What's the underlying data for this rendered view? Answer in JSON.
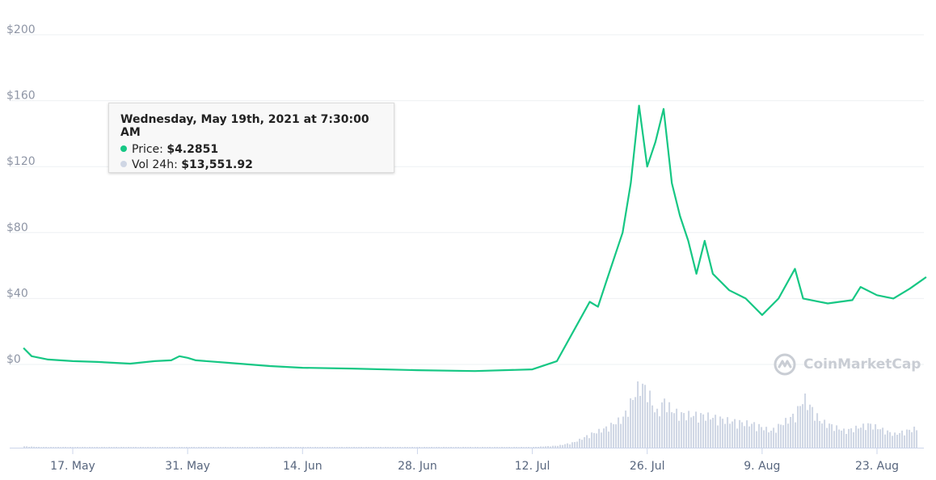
{
  "chart_data": {
    "type": "line",
    "x_ticks": [
      "17. May",
      "31. May",
      "14. Jun",
      "28. Jun",
      "12. Jul",
      "26. Jul",
      "9. Aug",
      "23. Aug"
    ],
    "y_ticks": [
      "$200",
      "$160",
      "$120",
      "$80",
      "$40",
      "$0"
    ],
    "ylim": [
      0,
      200
    ],
    "grid": true,
    "series": [
      {
        "color": "#16c784",
        "points": [
          [
            "May 11",
            10
          ],
          [
            "May 12",
            5
          ],
          [
            "May 14",
            3
          ],
          [
            "May 17",
            2
          ],
          [
            "May 20",
            1.5
          ],
          [
            "May 24",
            0.5
          ],
          [
            "May 27",
            2
          ],
          [
            "May 29",
            2.5
          ],
          [
            "May 30",
            5
          ],
          [
            "May 31",
            4
          ],
          [
            "Jun 1",
            2.5
          ],
          [
            "Jun 5",
            1
          ],
          [
            "Jun 10",
            -1
          ],
          [
            "Jun 14",
            -2
          ],
          [
            "Jun 20",
            -2.5
          ],
          [
            "Jun 28",
            -3.5
          ],
          [
            "Jul 5",
            -4
          ],
          [
            "Jul 12",
            -3
          ],
          [
            "Jul 15",
            2
          ],
          [
            "Jul 17",
            20
          ],
          [
            "Jul 19",
            38
          ],
          [
            "Jul 20",
            35
          ],
          [
            "Jul 21",
            50
          ],
          [
            "Jul 22",
            65
          ],
          [
            "Jul 23",
            80
          ],
          [
            "Jul 24",
            110
          ],
          [
            "Jul 25",
            157
          ],
          [
            "Jul 26",
            120
          ],
          [
            "Jul 27",
            135
          ],
          [
            "Jul 28",
            155
          ],
          [
            "Jul 29",
            110
          ],
          [
            "Jul 30",
            90
          ],
          [
            "Jul 31",
            75
          ],
          [
            "Aug 1",
            55
          ],
          [
            "Aug 2",
            75
          ],
          [
            "Aug 3",
            55
          ],
          [
            "Aug 5",
            45
          ],
          [
            "Aug 7",
            40
          ],
          [
            "Aug 9",
            30
          ],
          [
            "Aug 11",
            40
          ],
          [
            "Aug 13",
            58
          ],
          [
            "Aug 14",
            40
          ],
          [
            "Aug 17",
            37
          ],
          [
            "Aug 20",
            39
          ],
          [
            "Aug 21",
            47
          ],
          [
            "Aug 23",
            42
          ],
          [
            "Aug 25",
            40
          ],
          [
            "Aug 27",
            46
          ],
          [
            "Aug 29",
            53
          ]
        ]
      }
    ],
    "volume": {
      "color": "#cfd6e4",
      "points": [
        [
          "May 11",
          2
        ],
        [
          "May 13",
          1
        ],
        [
          "Jul 12",
          1
        ],
        [
          "Jul 15",
          3
        ],
        [
          "Jul 17",
          8
        ],
        [
          "Jul 19",
          20
        ],
        [
          "Jul 21",
          30
        ],
        [
          "Jul 23",
          45
        ],
        [
          "Jul 25",
          95
        ],
        [
          "Jul 26",
          85
        ],
        [
          "Jul 27",
          50
        ],
        [
          "Jul 28",
          70
        ],
        [
          "Jul 29",
          55
        ],
        [
          "Jul 30",
          50
        ],
        [
          "Aug 2",
          48
        ],
        [
          "Aug 5",
          40
        ],
        [
          "Aug 8",
          35
        ],
        [
          "Aug 10",
          25
        ],
        [
          "Aug 13",
          50
        ],
        [
          "Aug 14",
          75
        ],
        [
          "Aug 16",
          40
        ],
        [
          "Aug 19",
          25
        ],
        [
          "Aug 22",
          35
        ],
        [
          "Aug 25",
          20
        ],
        [
          "Aug 28",
          30
        ]
      ]
    }
  },
  "tooltip": {
    "title": "Wednesday, May 19th, 2021 at 7:30:00 AM",
    "price_label": "Price:",
    "price_value": "$4.2851",
    "volume_label": "Vol 24h:",
    "volume_value": "$13,551.92",
    "price_color": "#16c784",
    "volume_color": "#cfd6e4"
  },
  "watermark": {
    "text": "CoinMarketCap",
    "icon": "coinmarketcap-logo"
  }
}
